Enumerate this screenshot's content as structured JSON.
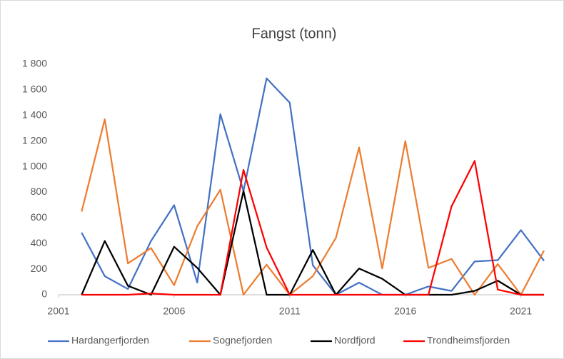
{
  "chart_data": {
    "type": "line",
    "title": "Fangst (tonn)",
    "x": [
      2002,
      2003,
      2004,
      2005,
      2006,
      2007,
      2008,
      2009,
      2010,
      2011,
      2012,
      2013,
      2014,
      2015,
      2016,
      2017,
      2018,
      2019,
      2020,
      2021,
      2022
    ],
    "xlim": [
      2001,
      2022
    ],
    "xticks": [
      2001,
      2006,
      2011,
      2016,
      2021
    ],
    "ylim": [
      0,
      1800
    ],
    "yticks": [
      0,
      200,
      400,
      600,
      800,
      {
        "value": 1000,
        "label": "1 000"
      },
      {
        "value": 1200,
        "label": "1 200"
      },
      {
        "value": 1400,
        "label": "1 400"
      },
      {
        "value": 1600,
        "label": "1 600"
      },
      {
        "value": 1800,
        "label": "1 800"
      }
    ],
    "grid": false,
    "legend": "bottom",
    "series": [
      {
        "name": "Hardangerfjorden",
        "color": "#4472c4",
        "values": [
          485,
          145,
          45,
          420,
          700,
          95,
          1410,
          810,
          1690,
          1500,
          230,
          0,
          95,
          0,
          0,
          65,
          30,
          260,
          270,
          505,
          265
        ]
      },
      {
        "name": "Sognefjorden",
        "color": "#ed7d31",
        "values": [
          650,
          1370,
          245,
          365,
          75,
          535,
          820,
          0,
          235,
          0,
          145,
          445,
          1150,
          205,
          1200,
          210,
          280,
          0,
          240,
          0,
          345
        ]
      },
      {
        "name": "Nordfjord",
        "color": "#000000",
        "values": [
          0,
          420,
          70,
          0,
          375,
          210,
          0,
          810,
          0,
          0,
          350,
          0,
          205,
          125,
          0,
          0,
          0,
          30,
          110,
          0,
          0
        ]
      },
      {
        "name": "Trondheimsfjorden",
        "color": "#ff0000",
        "values": [
          0,
          0,
          0,
          10,
          0,
          0,
          0,
          975,
          370,
          0,
          0,
          0,
          0,
          0,
          0,
          0,
          690,
          1045,
          40,
          0,
          0
        ]
      }
    ]
  }
}
